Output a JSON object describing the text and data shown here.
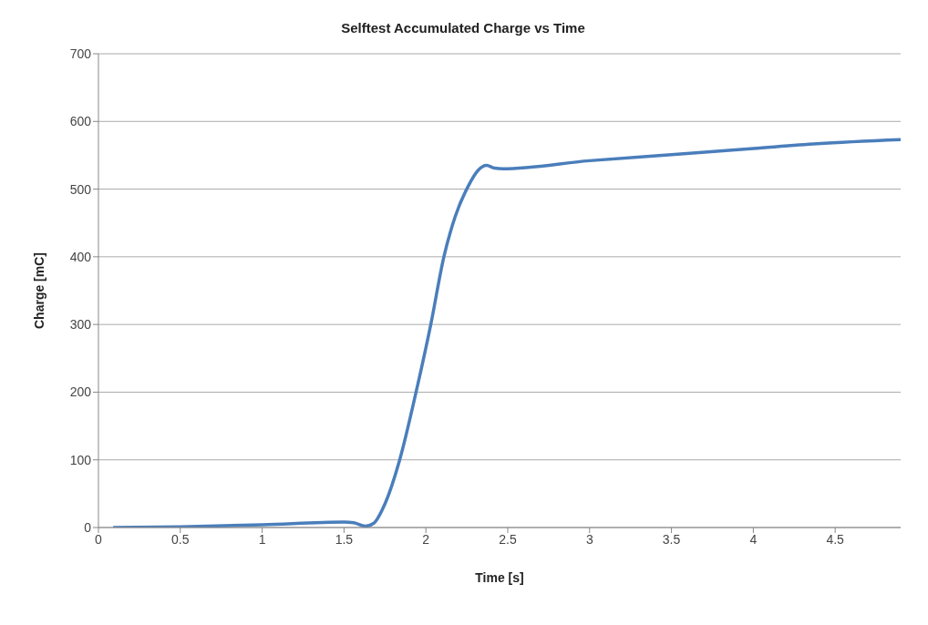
{
  "chart_data": {
    "type": "line",
    "title": "Selftest Accumulated Charge vs Time",
    "xlabel": "Time [s]",
    "ylabel": "Charge [mC]",
    "x": [
      0.09,
      0.5,
      1,
      1.5,
      1.56,
      1.63,
      1.68,
      1.75,
      1.84,
      1.94,
      2.03,
      2.11,
      2.18,
      2.26,
      2.32,
      2.37,
      2.42,
      2.47,
      3,
      3.5,
      4,
      4.39,
      4.9
    ],
    "series": [
      {
        "color": "#4a7ebb",
        "values": [
          0,
          1,
          4,
          8,
          7,
          2,
          6,
          35,
          100,
          200,
          300,
          400,
          460,
          505,
          528,
          535,
          531,
          530,
          542,
          551,
          560,
          567,
          573
        ]
      }
    ],
    "xlim": [
      0,
      4.9
    ],
    "xticks": [
      0,
      0.5,
      1,
      1.5,
      2,
      2.5,
      3,
      3.5,
      4,
      4.5
    ],
    "ylim": [
      0,
      700
    ],
    "yticks": [
      0,
      100,
      200,
      300,
      400,
      500,
      600,
      700
    ],
    "grid": "y",
    "legend": false,
    "marker": "none",
    "line_style": "solid"
  }
}
